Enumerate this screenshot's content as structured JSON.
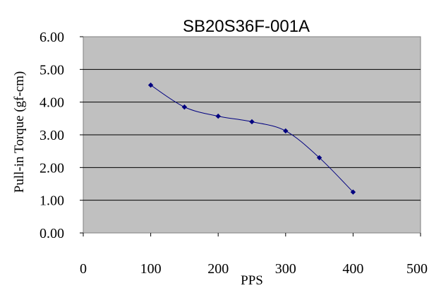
{
  "chart_data": {
    "type": "line",
    "title": "SB20S36F-001A",
    "xlabel": "PPS",
    "ylabel": "Pull-in Torque (gf-cm)",
    "xlim": [
      0,
      500
    ],
    "ylim": [
      0,
      6
    ],
    "x_ticks": [
      "0",
      "100",
      "200",
      "300",
      "400",
      "500"
    ],
    "y_ticks": [
      "0.00",
      "1.00",
      "2.00",
      "3.00",
      "4.00",
      "5.00",
      "6.00"
    ],
    "grid": "horizontal",
    "legend": "none",
    "series": [
      {
        "x": [
          100,
          150,
          200,
          250,
          300,
          350,
          400
        ],
        "values": [
          4.52,
          3.85,
          3.57,
          3.4,
          3.12,
          2.3,
          1.25
        ],
        "color": "#000080"
      }
    ],
    "plot_background": "#c0c0c0"
  }
}
